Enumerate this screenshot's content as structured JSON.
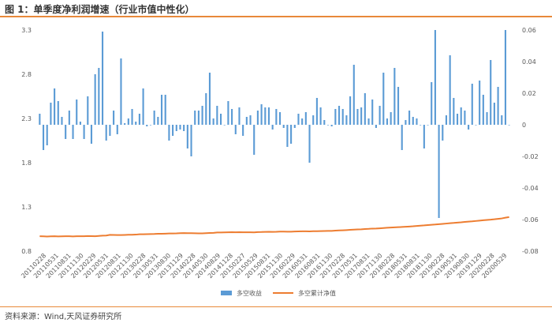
{
  "header": {
    "title": "图 1：单季度净利润增速（行业市值中性化）"
  },
  "footer": {
    "source": "资料来源：Wind,天风证券研究所"
  },
  "chart_data": {
    "type": "bar+line",
    "title": "",
    "x_tick_labels": [
      "20110228",
      "20110531",
      "20110831",
      "20111130",
      "20120229",
      "20120531",
      "20120831",
      "20121130",
      "20130228",
      "20130531",
      "20130830",
      "20131129",
      "20140228",
      "20140530",
      "20140829",
      "20141128",
      "20150227",
      "20150529",
      "20150831",
      "20151130",
      "20160229",
      "20160531",
      "20160831",
      "20161130",
      "20170228",
      "20170531",
      "20170831",
      "20171130",
      "20180228",
      "20180531",
      "20180831",
      "20181130",
      "20190228",
      "20190531",
      "20190830",
      "20191129",
      "20200228",
      "20200529"
    ],
    "y_left": {
      "ylim": [
        0.8,
        3.3
      ],
      "ticks": [
        "0.8",
        "1.3",
        "1.8",
        "2.3",
        "2.8",
        "3.3"
      ]
    },
    "y_right": {
      "ylim": [
        -0.08,
        0.06
      ],
      "ticks": [
        "0.06",
        "0.04",
        "0.02",
        "0",
        "-0.02",
        "-0.04",
        "-0.06",
        "-0.08"
      ]
    },
    "colors": {
      "bars": "#5b9bd5",
      "line": "#ed7d31"
    },
    "legend": {
      "placement": "bottom",
      "entries": [
        "多空收益",
        "多空累计净值"
      ]
    },
    "series": [
      {
        "name": "多空收益",
        "axis": "right",
        "type": "bar",
        "values": [
          0.007,
          -0.016,
          -0.013,
          0.014,
          0.023,
          0.015,
          0.005,
          -0.009,
          0.009,
          -0.009,
          0.016,
          0.002,
          -0.009,
          0.018,
          -0.012,
          0.032,
          0.036,
          0.059,
          -0.01,
          -0.007,
          0.009,
          -0.006,
          0.042,
          0.001,
          0.004,
          0.01,
          0.002,
          0.007,
          0.023,
          -0.001,
          0.0,
          0.009,
          0.005,
          0.019,
          0.019,
          -0.01,
          -0.007,
          -0.004,
          -0.003,
          -0.004,
          -0.015,
          -0.02,
          0.009,
          0.009,
          0.012,
          0.02,
          0.033,
          0.004,
          0.012,
          0.007,
          0.0,
          0.015,
          0.01,
          -0.006,
          0.011,
          -0.007,
          0.005,
          0.006,
          -0.019,
          0.009,
          0.013,
          0.011,
          0.011,
          -0.003,
          0.01,
          0.008,
          -0.002,
          -0.014,
          -0.012,
          -0.002,
          0.007,
          0.004,
          0.008,
          -0.024,
          0.006,
          0.017,
          0.011,
          0.003,
          0.0,
          -0.001,
          0.01,
          0.012,
          0.01,
          0.006,
          0.018,
          0.038,
          0.01,
          0.011,
          0.02,
          0.004,
          0.016,
          -0.002,
          0.012,
          0.033,
          0.004,
          0.008,
          0.036,
          0.024,
          -0.016,
          0.003,
          0.009,
          0.005,
          0.004,
          0.0,
          -0.015,
          0.0,
          0.027,
          0.06,
          -0.059,
          -0.01,
          0.006,
          0.044,
          0.017,
          0.007,
          0.011,
          0.009,
          -0.003,
          0.026,
          0.0,
          0.028,
          0.019,
          0.008,
          0.041,
          0.014,
          0.024,
          0.006,
          0.06,
          0.0
        ]
      },
      {
        "name": "多空累计净值",
        "axis": "left",
        "type": "line",
        "values": [
          0.968,
          0.967,
          0.965,
          0.967,
          0.968,
          0.966,
          0.967,
          0.968,
          0.968,
          0.966,
          0.968,
          0.969,
          0.968,
          0.971,
          0.97,
          0.968,
          0.972,
          0.975,
          0.976,
          0.984,
          0.983,
          0.982,
          0.982,
          0.983,
          0.985,
          0.985,
          0.987,
          0.991,
          0.991,
          0.992,
          0.993,
          0.994,
          0.996,
          0.997,
          0.998,
          1.0,
          1.0,
          1.001,
          1.003,
          1.004,
          1.003,
          1.003,
          1.002,
          1.001,
          1.001,
          1.003,
          1.005,
          1.007,
          1.011,
          1.011,
          1.012,
          1.013,
          1.014,
          1.013,
          1.014,
          1.013,
          1.013,
          1.013,
          1.012,
          1.015,
          1.016,
          1.018,
          1.019,
          1.018,
          1.019,
          1.021,
          1.021,
          1.02,
          1.02,
          1.022,
          1.023,
          1.024,
          1.024,
          1.023,
          1.025,
          1.026,
          1.027,
          1.028,
          1.029,
          1.029,
          1.032,
          1.034,
          1.036,
          1.038,
          1.041,
          1.043,
          1.045,
          1.047,
          1.05,
          1.052,
          1.055,
          1.056,
          1.058,
          1.061,
          1.064,
          1.067,
          1.069,
          1.071,
          1.073,
          1.076,
          1.078,
          1.081,
          1.085,
          1.088,
          1.091,
          1.095,
          1.098,
          1.101,
          1.105,
          1.108,
          1.112,
          1.116,
          1.119,
          1.123,
          1.126,
          1.13,
          1.134,
          1.137,
          1.141,
          1.145,
          1.149,
          1.153,
          1.156,
          1.16,
          1.165,
          1.17,
          1.178,
          1.185
        ]
      }
    ]
  }
}
